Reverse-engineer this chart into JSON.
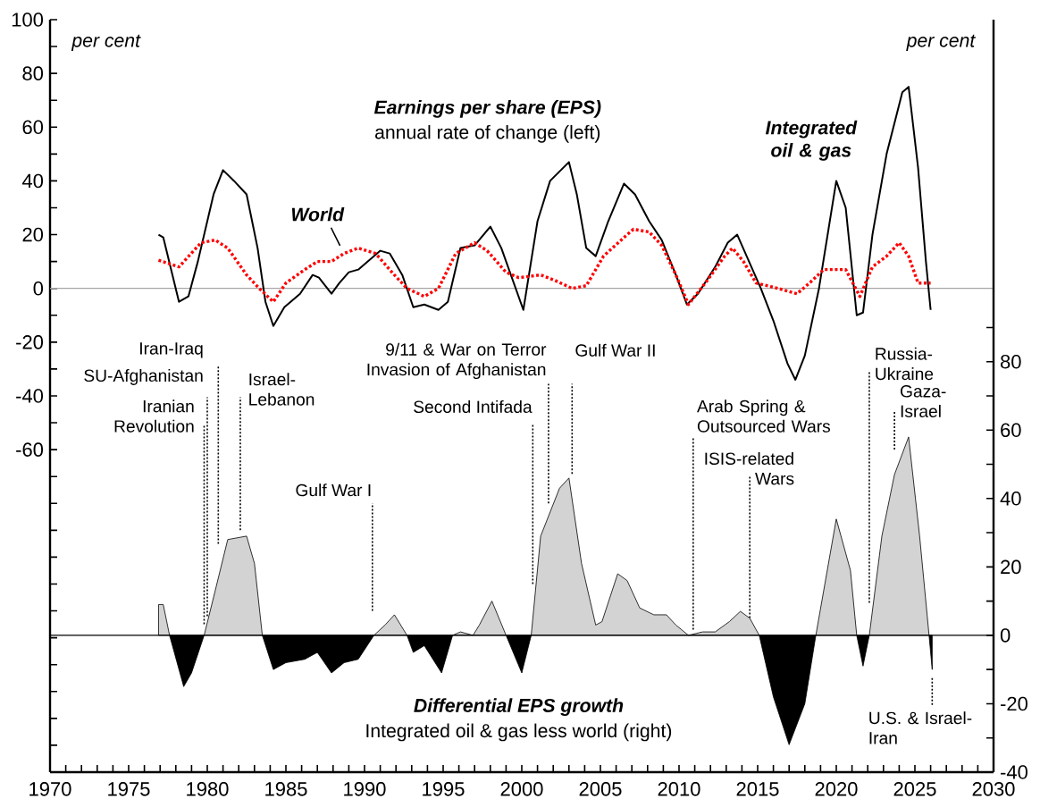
{
  "chart_data": {
    "type": "line",
    "title": "Earnings per share (EPS)",
    "subtitle": "annual rate of change (left)",
    "xlim": [
      1970,
      2030
    ],
    "xticks": [
      1970,
      {
        "value": 1971,
        "label": null
      },
      {
        "value": 1972,
        "label": null
      },
      {
        "value": 1973,
        "label": null
      },
      {
        "value": 1974,
        "label": null
      },
      1975,
      {
        "value": 1976,
        "label": null
      },
      {
        "value": 1977,
        "label": null
      },
      {
        "value": 1978,
        "label": null
      },
      {
        "value": 1979,
        "label": null
      },
      1980,
      {
        "value": 1981,
        "label": null
      },
      {
        "value": 1982,
        "label": null
      },
      {
        "value": 1983,
        "label": null
      },
      {
        "value": 1984,
        "label": null
      },
      1985,
      {
        "value": 1986,
        "label": null
      },
      {
        "value": 1987,
        "label": null
      },
      {
        "value": 1988,
        "label": null
      },
      {
        "value": 1989,
        "label": null
      },
      1990,
      {
        "value": 1991,
        "label": null
      },
      {
        "value": 1992,
        "label": null
      },
      {
        "value": 1993,
        "label": null
      },
      {
        "value": 1994,
        "label": null
      },
      1995,
      {
        "value": 1996,
        "label": null
      },
      {
        "value": 1997,
        "label": null
      },
      {
        "value": 1998,
        "label": null
      },
      {
        "value": 1999,
        "label": null
      },
      2000,
      {
        "value": 2001,
        "label": null
      },
      {
        "value": 2002,
        "label": null
      },
      {
        "value": 2003,
        "label": null
      },
      {
        "value": 2004,
        "label": null
      },
      2005,
      {
        "value": 2006,
        "label": null
      },
      {
        "value": 2007,
        "label": null
      },
      {
        "value": 2008,
        "label": null
      },
      {
        "value": 2009,
        "label": null
      },
      2010,
      {
        "value": 2011,
        "label": null
      },
      {
        "value": 2012,
        "label": null
      },
      {
        "value": 2013,
        "label": null
      },
      {
        "value": 2014,
        "label": null
      },
      2015,
      {
        "value": 2016,
        "label": null
      },
      {
        "value": 2017,
        "label": null
      },
      {
        "value": 2018,
        "label": null
      },
      {
        "value": 2019,
        "label": null
      },
      2020,
      {
        "value": 2021,
        "label": null
      },
      {
        "value": 2022,
        "label": null
      },
      {
        "value": 2023,
        "label": null
      },
      {
        "value": 2024,
        "label": null
      },
      2025,
      {
        "value": 2026,
        "label": null
      },
      {
        "value": 2027,
        "label": null
      },
      {
        "value": 2028,
        "label": null
      },
      {
        "value": 2029,
        "label": null
      },
      2030
    ],
    "ylim": [
      -180,
      100
    ],
    "yticks": [
      {
        "value": -180,
        "label": null
      },
      {
        "value": -170,
        "label": null
      },
      {
        "value": -160,
        "label": null
      },
      {
        "value": -150,
        "label": null
      },
      {
        "value": -140,
        "label": null
      },
      {
        "value": -130,
        "label": null
      },
      {
        "value": -120,
        "label": null
      },
      {
        "value": -110,
        "label": null
      },
      {
        "value": -100,
        "label": null
      },
      {
        "value": -90,
        "label": null
      },
      {
        "value": -80,
        "label": null
      },
      {
        "value": -70,
        "label": null
      },
      -60,
      {
        "value": -50,
        "label": null
      },
      -40,
      {
        "value": -30,
        "label": null
      },
      -20,
      {
        "value": -10,
        "label": null
      },
      0,
      {
        "value": 10,
        "label": null
      },
      20,
      {
        "value": 30,
        "label": null
      },
      40,
      {
        "value": 50,
        "label": null
      },
      60,
      {
        "value": 70,
        "label": null
      },
      80,
      {
        "value": 90,
        "label": null
      },
      100
    ],
    "y2lim": [
      -40,
      180
    ],
    "y2ticks": [
      -40,
      {
        "value": -30,
        "label": null
      },
      -20,
      {
        "value": -10,
        "label": null
      },
      0,
      {
        "value": 10,
        "label": null
      },
      20,
      {
        "value": 30,
        "label": null
      },
      40,
      {
        "value": 50,
        "label": null
      },
      60,
      {
        "value": 70,
        "label": null
      },
      80,
      {
        "value": 90,
        "label": null
      }
    ],
    "series": [
      {
        "name": "Integrated oil & gas",
        "color": "#000000",
        "line_style": "solid",
        "x": [
          1976.9,
          1977.2,
          1978.2,
          1978.8,
          1979.4,
          1980.4,
          1981.0,
          1981.7,
          1982.5,
          1983.2,
          1983.7,
          1984.2,
          1984.9,
          1985.9,
          1986.7,
          1987.1,
          1987.9,
          1988.4,
          1989.0,
          1989.6,
          1991.0,
          1991.6,
          1992.4,
          1993.1,
          1993.8,
          1994.7,
          1995.3,
          1996.1,
          1997.0,
          1998.0,
          1998.7,
          2000.1,
          2001.0,
          2001.8,
          2003.0,
          2003.5,
          2004.1,
          2004.7,
          2005.5,
          2006.5,
          2007.2,
          2008.1,
          2008.9,
          2009.8,
          2010.5,
          2011.2,
          2012.3,
          2013.1,
          2013.7,
          2014.3,
          2015.2,
          2016.0,
          2016.9,
          2017.4,
          2018.0,
          2018.9,
          2020.0,
          2020.6,
          2021.3,
          2021.7,
          2022.3,
          2023.2,
          2024.2,
          2024.6,
          2025.2,
          2025.7,
          2026.0
        ],
        "values": [
          20,
          19,
          -5,
          -3,
          10,
          35,
          44,
          40,
          35,
          15,
          -5,
          -14,
          -7,
          -2,
          5,
          4,
          -2,
          2,
          6,
          7,
          14,
          13,
          5,
          -7,
          -6,
          -8,
          -5,
          15,
          16,
          23,
          15,
          -8,
          25,
          40,
          47,
          35,
          15,
          12,
          25,
          39,
          35,
          25,
          18,
          5,
          -6,
          -2,
          8,
          17,
          20,
          12,
          0,
          -12,
          -28,
          -34,
          -25,
          0,
          40,
          30,
          -10,
          -9,
          20,
          50,
          73,
          75,
          45,
          10,
          -8
        ]
      },
      {
        "name": "World",
        "color": "#ff0000",
        "line_style": "dotted",
        "x": [
          1976.9,
          1978.2,
          1979.6,
          1980.5,
          1981.3,
          1982.5,
          1983.3,
          1984.2,
          1985.0,
          1986.2,
          1987.0,
          1987.9,
          1988.7,
          1989.6,
          1990.7,
          1991.9,
          1992.7,
          1993.8,
          1994.7,
          1995.8,
          1997.0,
          1997.8,
          1999.0,
          1999.8,
          2001.2,
          2002.1,
          2003.2,
          2004.1,
          2005.2,
          2006.7,
          2007.1,
          2008.1,
          2008.9,
          2009.8,
          2010.6,
          2011.8,
          2012.9,
          2013.4,
          2014.1,
          2014.9,
          2016.3,
          2017.5,
          2018.3,
          2019.2,
          2020.6,
          2021.5,
          2022.3,
          2023.2,
          2024.0,
          2024.6,
          2025.2,
          2026.0
        ],
        "values": [
          10.5,
          8,
          17,
          18,
          15,
          5,
          0,
          -5,
          2,
          7,
          10,
          10,
          13,
          15,
          13,
          5,
          0,
          -3,
          0,
          13,
          17,
          14,
          6,
          4,
          5,
          3,
          0,
          1,
          12,
          20,
          22,
          21,
          16,
          5,
          -6,
          3,
          12,
          15,
          10,
          2,
          0,
          -2,
          2,
          7,
          7,
          -3,
          8,
          12,
          17,
          12,
          2,
          2
        ]
      },
      {
        "type": "area",
        "axis": "y2",
        "color": "#d3d3d3",
        "x": [
          1976.9,
          1977.2,
          1977.6,
          1978.5,
          1979.0,
          1979.8,
          1980.5,
          1981.3,
          1982.5,
          1983.0,
          1983.5,
          1984.2,
          1985.0,
          1986.2,
          1987.0,
          1987.9,
          1988.7,
          1989.6,
          1990.6,
          1991.3,
          1991.9,
          1992.7,
          1993.1,
          1993.8,
          1994.9,
          1995.6,
          1996.1,
          1996.9,
          1997.3,
          1998.1,
          1999.0,
          2000.0,
          2000.6,
          2001.2,
          2002.4,
          2003.0,
          2003.8,
          2004.7,
          2005.1,
          2006.1,
          2006.7,
          2007.5,
          2008.4,
          2009.2,
          2009.8,
          2010.6,
          2011.5,
          2012.3,
          2013.2,
          2013.9,
          2014.5,
          2015.1,
          2016.0,
          2017.0,
          2018.0,
          2018.7,
          2020.0,
          2020.9,
          2021.3,
          2021.7,
          2022.1,
          2022.9,
          2023.7,
          2024.6,
          2025.3,
          2025.9,
          2026.1
        ],
        "values": [
          9,
          9,
          0,
          -15,
          -11,
          0,
          13,
          28,
          29,
          21,
          0,
          -10,
          -8,
          -7,
          -5,
          -11,
          -8,
          -7,
          0,
          3,
          6,
          0,
          -5,
          -3,
          -11,
          0,
          1,
          0,
          3,
          10,
          0,
          -11,
          0,
          29,
          43,
          46,
          21,
          3,
          4,
          18,
          16,
          8,
          6,
          6,
          3,
          0,
          1,
          1,
          4,
          7,
          5,
          0,
          -18,
          -32,
          -20,
          0,
          34,
          19,
          0,
          -9,
          0,
          29,
          47,
          58,
          29,
          0,
          -10
        ]
      }
    ],
    "ref_lines": [
      {
        "axis": "y",
        "value": 0,
        "color": "#a6a6a6"
      },
      {
        "axis": "y2",
        "value": 0,
        "color": "#000000"
      },
      {
        "axis": "x",
        "value": 1980.7,
        "label": "Iran-Iraq",
        "line_style": "dotted"
      },
      {
        "axis": "x",
        "value": 1980.0,
        "label": "SU-Afghanistan",
        "line_style": "dotted"
      },
      {
        "axis": "x",
        "value": 1979.8,
        "label": "Iranian Revolution",
        "line_style": "dotted"
      },
      {
        "axis": "x",
        "value": 1982.1,
        "label": "Israel-Lebanon",
        "line_style": "dotted"
      },
      {
        "axis": "x",
        "value": 1990.5,
        "label": "Gulf War I",
        "line_style": "dotted"
      },
      {
        "axis": "x",
        "value": 2000.7,
        "label": "Second Intifada",
        "line_style": "dotted"
      },
      {
        "axis": "x",
        "value": 2001.7,
        "label": "9/11 & War on Terror Invasion of Afghanistan",
        "line_style": "dotted"
      },
      {
        "axis": "x",
        "value": 2003.2,
        "label": "Gulf War II",
        "line_style": "dotted"
      },
      {
        "axis": "x",
        "value": 2010.9,
        "label": "Arab Spring & Outsourced Wars",
        "line_style": "dotted"
      },
      {
        "axis": "x",
        "value": 2014.5,
        "label": "ISIS-related Wars",
        "line_style": "dotted"
      },
      {
        "axis": "x",
        "value": 2022.1,
        "label": "Russia-Ukraine",
        "line_style": "dotted"
      },
      {
        "axis": "x",
        "value": 2023.7,
        "label": "Gaza-Israel",
        "line_style": "dotted"
      },
      {
        "axis": "x",
        "value": 2026.1,
        "label": "U.S. & Israel-Iran",
        "line_style": "dotted"
      }
    ],
    "annotations": [
      "per cent",
      "per cent",
      "Differential EPS growth",
      "Integrated oil & gas less world (right)"
    ]
  }
}
